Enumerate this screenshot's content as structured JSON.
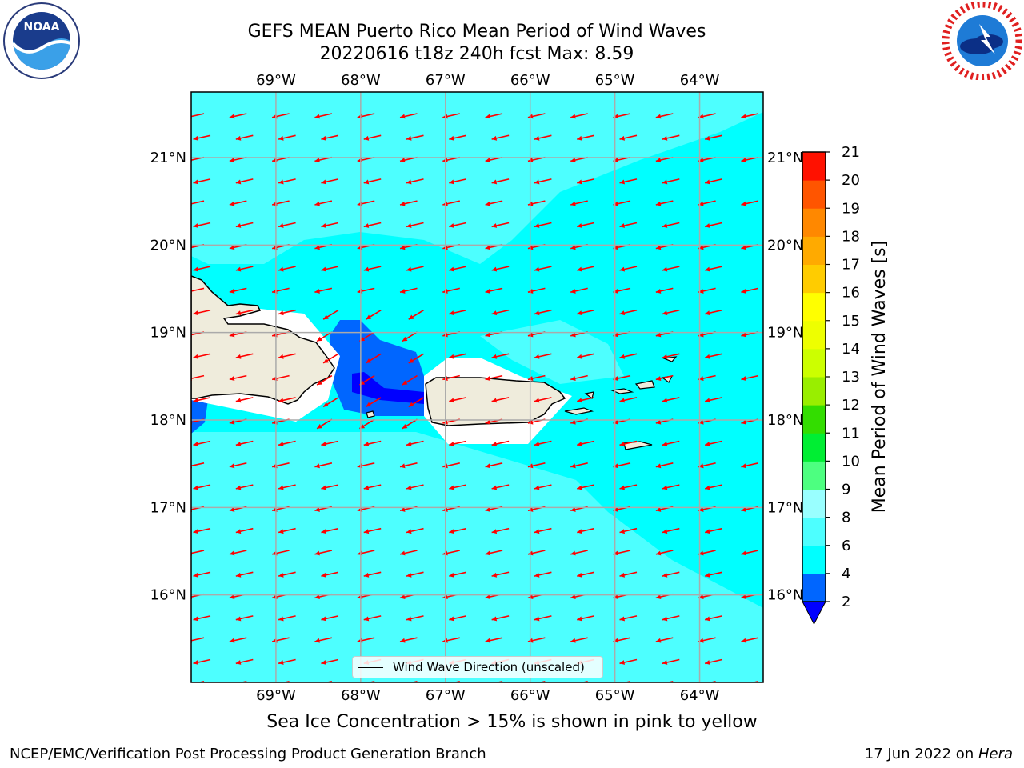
{
  "title": {
    "line1": "GEFS MEAN Puerto Rico Mean Period of Wind Waves",
    "line2": "20220616 t18z 240h fcst   Max: 8.59"
  },
  "logos": {
    "left": {
      "icon": "noaa-logo",
      "text": "NOAA",
      "ring_text": "NATIONAL OCEANIC AND ATMOSPHERIC ADMINISTRATION · U.S. DEPARTMENT OF COMMERCE"
    },
    "right": {
      "icon": "nws-logo",
      "ring_text": "NATIONAL WEATHER SERVICE"
    }
  },
  "map": {
    "lon_range": [
      -70.0,
      -63.25
    ],
    "lat_range": [
      15.0,
      21.75
    ],
    "lon_ticks": [
      "69°W",
      "68°W",
      "67°W",
      "66°W",
      "65°W",
      "64°W"
    ],
    "lat_ticks": [
      "21°N",
      "20°N",
      "19°N",
      "18°N",
      "17°N",
      "16°N"
    ],
    "grid": true,
    "ocean_color": "#00ffff",
    "light_ocean_color": "#4dffff",
    "land_color": "#efecdc",
    "arrow_color": "#ff0000",
    "legend_label": "Wind Wave Direction (unscaled)"
  },
  "colorbar": {
    "label": "Mean Period of Wind Waves [s]",
    "ticks": [
      "2",
      "4",
      "6",
      "8",
      "9",
      "10",
      "11",
      "12",
      "13",
      "14",
      "15",
      "16",
      "17",
      "18",
      "19",
      "20",
      "21"
    ],
    "colors": [
      "#0066ff",
      "#00ffff",
      "#4dffff",
      "#99ffff",
      "#4dff80",
      "#00ee33",
      "#33dd00",
      "#99ee00",
      "#ccff00",
      "#eeff00",
      "#ffff00",
      "#ffcc00",
      "#ffaa00",
      "#ff8800",
      "#ff5500",
      "#ff1100"
    ],
    "under_color": "#0000ff"
  },
  "sea_ice_note": "Sea Ice Concentration > 15% is shown in pink to yellow",
  "footer": {
    "left": "NCEP/EMC/Verification Post Processing Product Generation Branch",
    "right_prefix": "17 Jun 2022 on ",
    "right_machine": "Hera"
  }
}
